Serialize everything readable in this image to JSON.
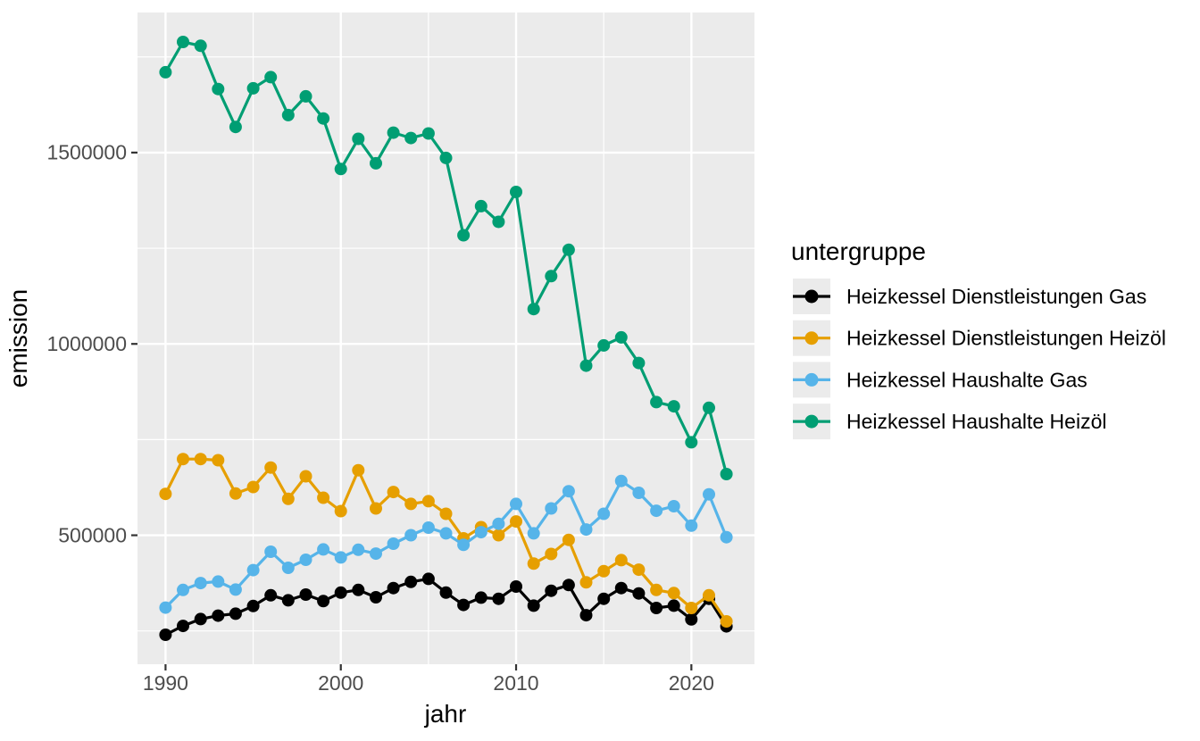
{
  "figure": {
    "background": "#FFFFFF",
    "panel_background": "#EBEBEB",
    "grid_color": "#FFFFFF",
    "tick_mark_color": "#333333",
    "tick_label_color": "#4D4D4D",
    "legend_key_background": "#EBEBEB"
  },
  "chart_data": {
    "type": "line",
    "title": "",
    "xlabel": "jahr",
    "ylabel": "emission",
    "legend_title": "untergruppe",
    "legend_position": "right",
    "grid": true,
    "xlim": [
      1988.4,
      2023.6
    ],
    "ylim": [
      163000,
      1866000
    ],
    "x_major_ticks": [
      1990,
      2000,
      2010,
      2020
    ],
    "x_tick_labels": [
      "1990",
      "2000",
      "2010",
      "2020"
    ],
    "x_minor_ticks": [
      1995,
      2005,
      2015
    ],
    "y_major_ticks": [
      500000,
      1000000,
      1500000
    ],
    "y_tick_labels": [
      "500000",
      "1000000",
      "1500000"
    ],
    "y_minor_ticks": [
      250000,
      750000,
      1250000,
      1750000
    ],
    "x": [
      1990,
      1991,
      1992,
      1993,
      1994,
      1995,
      1996,
      1997,
      1998,
      1999,
      2000,
      2001,
      2002,
      2003,
      2004,
      2005,
      2006,
      2007,
      2008,
      2009,
      2010,
      2011,
      2012,
      2013,
      2014,
      2015,
      2016,
      2017,
      2018,
      2019,
      2020,
      2021,
      2022
    ],
    "series": [
      {
        "name": "Heizkessel Dienstleistungen Gas",
        "color": "#000000",
        "values": [
          240000,
          263000,
          281000,
          290000,
          295000,
          315000,
          343000,
          330000,
          345000,
          328000,
          350000,
          357000,
          338000,
          362000,
          378000,
          386000,
          350000,
          318000,
          337000,
          334000,
          366000,
          316000,
          355000,
          370000,
          291000,
          334000,
          362000,
          348000,
          310000,
          316000,
          280000,
          334000,
          262000
        ]
      },
      {
        "name": "Heizkessel Dienstleistungen Heizöl",
        "color": "#E69F00",
        "values": [
          608000,
          699000,
          699000,
          696000,
          609000,
          626000,
          677000,
          595000,
          654000,
          598000,
          563000,
          670000,
          570000,
          613000,
          582000,
          589000,
          556000,
          492000,
          521000,
          500000,
          536000,
          426000,
          451000,
          488000,
          377000,
          406000,
          435000,
          410000,
          357000,
          349000,
          310000,
          343000,
          275000
        ]
      },
      {
        "name": "Heizkessel Haushalte Gas",
        "color": "#56B4E9",
        "values": [
          311000,
          357000,
          375000,
          379000,
          358000,
          409000,
          457000,
          415000,
          436000,
          463000,
          442000,
          462000,
          452000,
          478000,
          500000,
          520000,
          505000,
          475000,
          508000,
          530000,
          582000,
          505000,
          570000,
          615000,
          515000,
          556000,
          642000,
          611000,
          564000,
          576000,
          525000,
          607000,
          495000
        ]
      },
      {
        "name": "Heizkessel Haushalte Heizöl",
        "color": "#009E73",
        "values": [
          1710000,
          1789000,
          1779000,
          1666000,
          1567000,
          1668000,
          1697000,
          1598000,
          1647000,
          1589000,
          1457000,
          1536000,
          1472000,
          1552000,
          1538000,
          1550000,
          1486000,
          1284000,
          1360000,
          1319000,
          1397000,
          1091000,
          1177000,
          1246000,
          943000,
          996000,
          1017000,
          950000,
          848000,
          837000,
          743000,
          833000,
          660000
        ]
      }
    ]
  }
}
